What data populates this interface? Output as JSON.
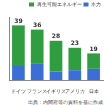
{
  "chart_data": {
    "type": "bar",
    "stacked": true,
    "categories": [
      "ドイツ",
      "フランス",
      "イギリス",
      "アメリカ",
      "日本"
    ],
    "series": [
      {
        "name": "水力",
        "color": "#3b6fd8",
        "values": [
          10,
          12,
          6,
          7,
          8
        ]
      },
      {
        "name": "再生可能エネルギー",
        "color": "#2e9e3e",
        "values": [
          29,
          24,
          22,
          16,
          11
        ]
      }
    ],
    "totals": [
      39,
      36,
      28,
      23,
      19
    ],
    "ylim": [
      0,
      45
    ],
    "yticks": [
      0,
      45
    ],
    "grid": false,
    "tick_labels": "x",
    "legend": "top-right",
    "note": "出典：内閣府等の資料を基に作成"
  }
}
